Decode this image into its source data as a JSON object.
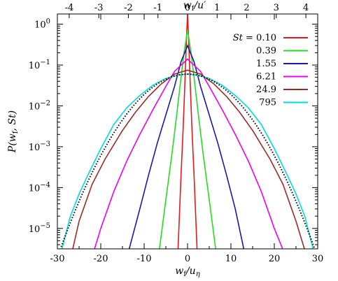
{
  "chart_data": {
    "type": "line",
    "xlabel": "w_f/u_η",
    "ylabel": "P(w_f, St)",
    "x2label": "w_f/u′",
    "xlim": [
      -30,
      30
    ],
    "x2lim": [
      -4.4,
      4.4
    ],
    "ylim_log10": [
      -5.5,
      0.25
    ],
    "y_scale": "log",
    "grid": false,
    "legend_position": "top-right",
    "legend_title": "St =",
    "x_ticks": [
      -30,
      -20,
      -10,
      0,
      10,
      20,
      30
    ],
    "x_tick_labels": [
      "-30",
      "-20",
      "-10",
      "0",
      "10",
      "20",
      "30"
    ],
    "x2_ticks": [
      -4,
      -3,
      -2,
      -1,
      0,
      1,
      2,
      3,
      4
    ],
    "x2_tick_labels": [
      "-4",
      "-3",
      "-2",
      "-1",
      "0",
      "1",
      "2",
      "3",
      "4"
    ],
    "y_ticks_exp": [
      0,
      -1,
      -2,
      -3,
      -4,
      -5
    ],
    "y_tick_mantissa": "10",
    "series": [
      {
        "name": "0.10",
        "color": "#e41a1c",
        "points": [
          [
            -2.2,
            3e-06
          ],
          [
            -1.5,
            0.0002
          ],
          [
            -1.0,
            0.003
          ],
          [
            -0.6,
            0.04
          ],
          [
            -0.3,
            0.3
          ],
          [
            0,
            1.9
          ],
          [
            0.3,
            0.3
          ],
          [
            0.6,
            0.04
          ],
          [
            1.0,
            0.003
          ],
          [
            1.5,
            0.0002
          ],
          [
            2.2,
            3e-06
          ]
        ]
      },
      {
        "name": "0.39",
        "color": "#22dd22",
        "points": [
          [
            -6.5,
            3e-06
          ],
          [
            -5.0,
            5e-05
          ],
          [
            -3.5,
            0.0008
          ],
          [
            -2.5,
            0.006
          ],
          [
            -1.5,
            0.05
          ],
          [
            -0.8,
            0.2
          ],
          [
            0,
            0.72
          ],
          [
            0.8,
            0.2
          ],
          [
            1.5,
            0.05
          ],
          [
            2.5,
            0.006
          ],
          [
            3.5,
            0.0008
          ],
          [
            5.0,
            5e-05
          ],
          [
            6.5,
            3e-06
          ]
        ]
      },
      {
        "name": "1.55",
        "color": "#1a1aa0",
        "points": [
          [
            -13.5,
            3e-06
          ],
          [
            -11,
            3e-05
          ],
          [
            -9,
            0.0002
          ],
          [
            -7,
            0.0012
          ],
          [
            -5,
            0.006
          ],
          [
            -3,
            0.03
          ],
          [
            -1.5,
            0.12
          ],
          [
            0,
            0.3
          ],
          [
            1.5,
            0.12
          ],
          [
            3,
            0.03
          ],
          [
            5,
            0.006
          ],
          [
            7,
            0.0012
          ],
          [
            9,
            0.0002
          ],
          [
            11,
            3e-05
          ],
          [
            13,
            3e-06
          ]
        ]
      },
      {
        "name": "6.21",
        "color": "#ee00ee",
        "points": [
          [
            -21.5,
            3e-06
          ],
          [
            -20,
            1e-05
          ],
          [
            -17,
            8e-05
          ],
          [
            -14,
            0.00045
          ],
          [
            -11,
            0.002
          ],
          [
            -8,
            0.008
          ],
          [
            -5,
            0.03
          ],
          [
            -3,
            0.07
          ],
          [
            0,
            0.14
          ],
          [
            3,
            0.07
          ],
          [
            5,
            0.03
          ],
          [
            8,
            0.008
          ],
          [
            11,
            0.002
          ],
          [
            14,
            0.00045
          ],
          [
            17,
            8e-05
          ],
          [
            20,
            1e-05
          ],
          [
            22,
            3e-06
          ]
        ]
      },
      {
        "name": "24.9",
        "color": "#9b2a2a",
        "points": [
          [
            -26.5,
            3e-06
          ],
          [
            -25,
            1.5e-05
          ],
          [
            -22,
            0.00012
          ],
          [
            -19,
            0.0005
          ],
          [
            -15,
            0.0025
          ],
          [
            -12,
            0.007
          ],
          [
            -9,
            0.017
          ],
          [
            -6,
            0.035
          ],
          [
            -3,
            0.06
          ],
          [
            0,
            0.075
          ],
          [
            3,
            0.06
          ],
          [
            6,
            0.035
          ],
          [
            9,
            0.017
          ],
          [
            12,
            0.007
          ],
          [
            15,
            0.0025
          ],
          [
            19,
            0.0005
          ],
          [
            22,
            0.00012
          ],
          [
            25,
            1.5e-05
          ],
          [
            27,
            3e-06
          ]
        ]
      },
      {
        "name": "795",
        "color": "#00dddd",
        "points": [
          [
            -29,
            3e-06
          ],
          [
            -27,
            2e-05
          ],
          [
            -25,
            7e-05
          ],
          [
            -23,
            0.0002
          ],
          [
            -20,
            0.0009
          ],
          [
            -17,
            0.0035
          ],
          [
            -14,
            0.009
          ],
          [
            -11,
            0.018
          ],
          [
            -8,
            0.032
          ],
          [
            -5,
            0.047
          ],
          [
            -2,
            0.057
          ],
          [
            0,
            0.06
          ],
          [
            2,
            0.057
          ],
          [
            5,
            0.047
          ],
          [
            8,
            0.032
          ],
          [
            11,
            0.018
          ],
          [
            14,
            0.009
          ],
          [
            17,
            0.0035
          ],
          [
            20,
            0.0009
          ],
          [
            23,
            0.0002
          ],
          [
            25,
            7e-05
          ],
          [
            27,
            2e-05
          ],
          [
            29,
            3e-06
          ]
        ]
      }
    ],
    "gaussian_reference": {
      "style": "dotted",
      "color": "#000000",
      "peak": 0.06,
      "sigma": 6.6
    }
  }
}
